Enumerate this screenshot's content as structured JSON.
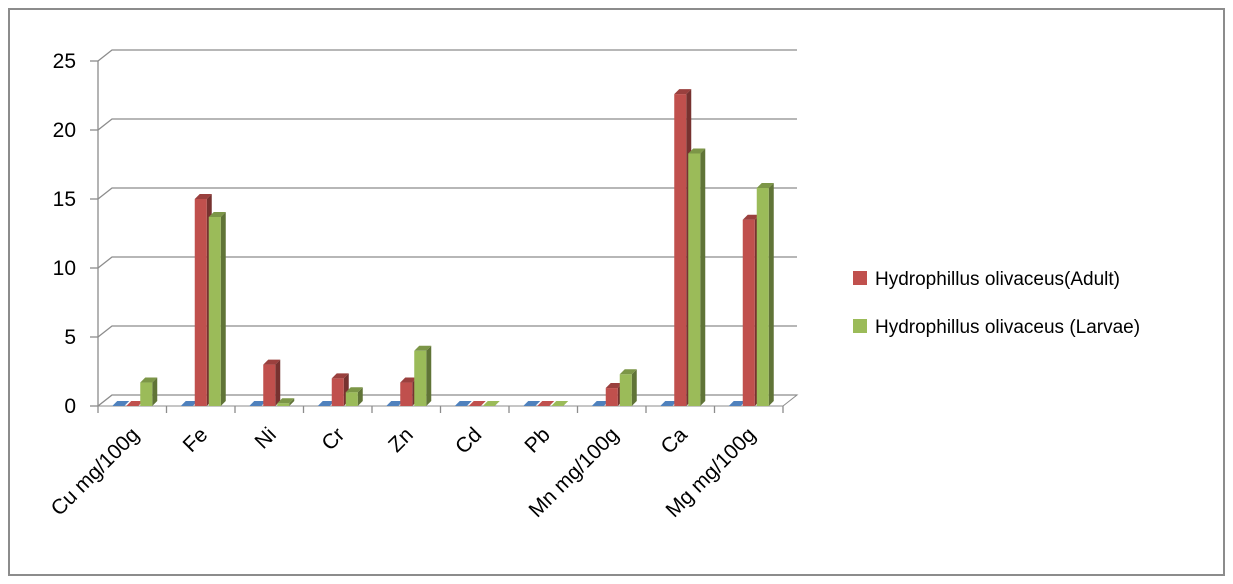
{
  "chart_data": {
    "type": "bar",
    "style": "3d-clustered-column",
    "categories": [
      "Cu mg/100g",
      "Fe",
      "Ni",
      "Cr",
      "Zn",
      "Cd",
      "Pb",
      "Mn mg/100g",
      "Ca",
      "Mg mg/100g"
    ],
    "series": [
      {
        "name": "",
        "color": "#4f81bd",
        "values": [
          0,
          0,
          0,
          0,
          0,
          0,
          0,
          0,
          0,
          0
        ]
      },
      {
        "name": "Hydrophillus olivaceus(Adult)",
        "color": "#c0504d",
        "values": [
          0,
          15.0,
          3.0,
          2.0,
          1.7,
          0,
          0,
          1.3,
          22.6,
          13.5
        ]
      },
      {
        "name": "Hydrophillus olivaceus (Larvae)",
        "color": "#9bbb59",
        "values": [
          1.7,
          13.7,
          0.2,
          1.0,
          4.0,
          0,
          0,
          2.3,
          18.3,
          15.8
        ]
      }
    ],
    "ylim": [
      0,
      25
    ],
    "yticks": [
      "0",
      "5",
      "10",
      "15",
      "20",
      "25"
    ],
    "grid": true,
    "legend_position": "right"
  }
}
